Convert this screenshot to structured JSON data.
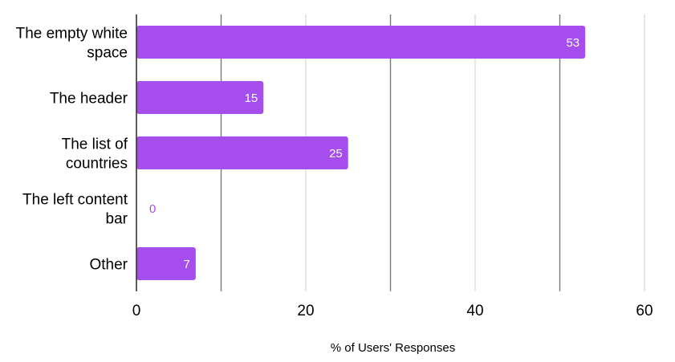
{
  "chart_data": {
    "type": "bar",
    "orientation": "horizontal",
    "categories": [
      [
        "The empty white",
        "space"
      ],
      [
        "The header"
      ],
      [
        "The list of",
        "countries"
      ],
      [
        "The left content",
        "bar"
      ],
      [
        "Other"
      ]
    ],
    "values": [
      53,
      15,
      25,
      0,
      7
    ],
    "data_labels": [
      "53",
      "15",
      "25",
      "0",
      "7"
    ],
    "xlabel": "% of Users' Responses",
    "ylabel": "",
    "title": "",
    "xlim": [
      0,
      60
    ],
    "x_ticks": [
      0,
      20,
      40,
      60
    ],
    "x_tick_labels": [
      "0",
      "20",
      "40",
      "60"
    ],
    "gridlines": [
      0,
      10,
      20,
      30,
      40,
      50,
      60
    ],
    "grid": true,
    "legend": "none",
    "colors": {
      "bar": "#a64ded",
      "label_inside": "#ffffff",
      "label_outside": "#a64ded",
      "grid_major": "#777777",
      "grid_minor": "#cccccc",
      "axis": "#333333"
    }
  }
}
